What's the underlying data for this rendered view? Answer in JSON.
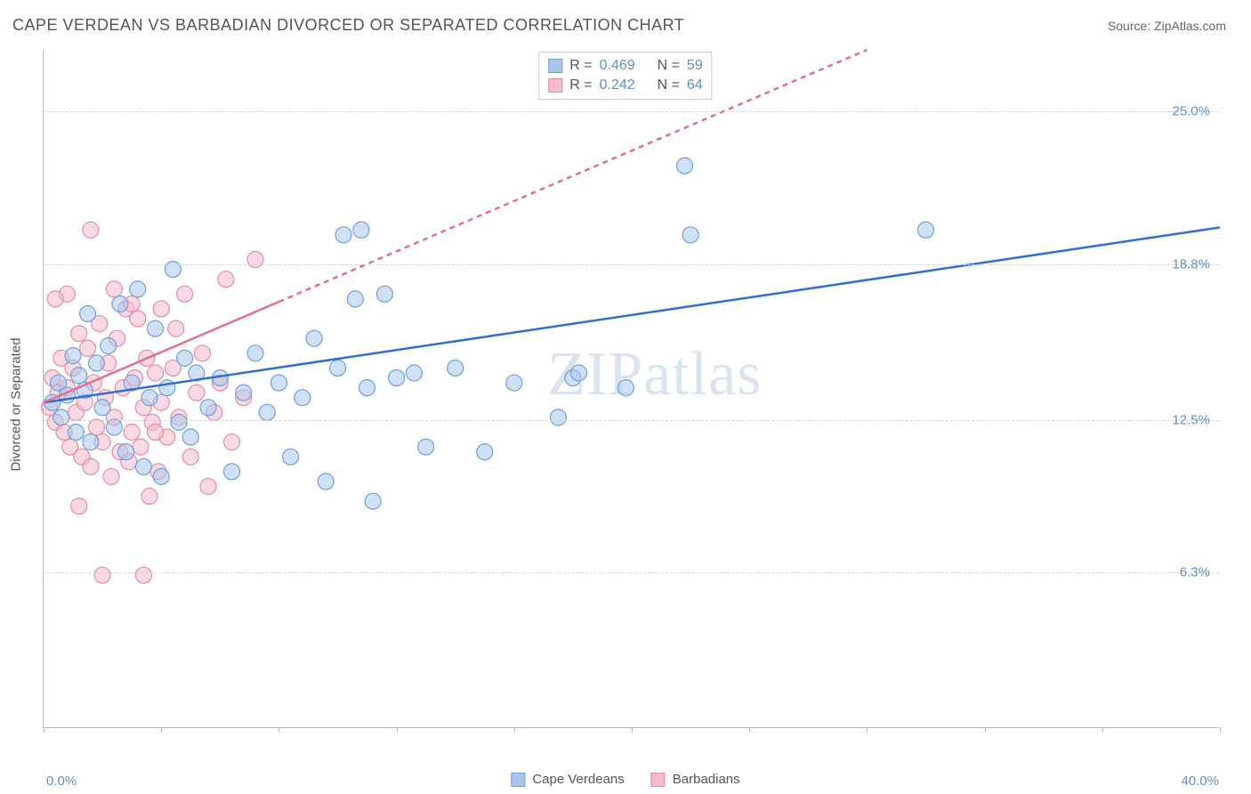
{
  "header": {
    "title": "CAPE VERDEAN VS BARBADIAN DIVORCED OR SEPARATED CORRELATION CHART",
    "source_prefix": "Source: ",
    "source_name": "ZipAtlas.com"
  },
  "axes": {
    "y_title": "Divorced or Separated",
    "x_min_label": "0.0%",
    "x_max_label": "40.0%",
    "xlim": [
      0,
      40
    ],
    "ylim": [
      0,
      27.5
    ],
    "y_gridlines": [
      6.3,
      12.5,
      18.8,
      25.0
    ],
    "y_labels": [
      "6.3%",
      "12.5%",
      "18.8%",
      "25.0%"
    ],
    "x_ticks": [
      0,
      4,
      8,
      12,
      16,
      20,
      24,
      28,
      32,
      36,
      40
    ]
  },
  "colors": {
    "series1_fill": "#a9c7ec",
    "series1_stroke": "#6da0e0",
    "series1_line": "#2f6fd0",
    "series2_fill": "#f4bccb",
    "series2_stroke": "#e88ba6",
    "series2_line": "#e36f8f",
    "grid": "#d5d5d5",
    "axis": "#bbbbbb",
    "text": "#555555",
    "value_text": "#5b8fd6",
    "background": "#ffffff",
    "watermark": "#d9e4f2"
  },
  "legend": {
    "series1": "Cape Verdeans",
    "series2": "Barbadians"
  },
  "stats": {
    "r_label": "R =",
    "n_label": "N =",
    "series1": {
      "r": "0.469",
      "n": "59"
    },
    "series2": {
      "r": "0.242",
      "n": "64"
    }
  },
  "watermark": {
    "text1": "ZIP",
    "text2": "atlas"
  },
  "chart": {
    "type": "scatter",
    "marker_radius": 9,
    "marker_opacity": 0.55,
    "line_width": 2.5,
    "series1_line": {
      "x1": 0,
      "y1": 13.2,
      "x2": 40,
      "y2": 20.3,
      "dashed_from_x": null
    },
    "series2_line": {
      "x1": 0,
      "y1": 13.2,
      "x2": 28,
      "y2": 27.5,
      "solid_to_x": 8
    },
    "series1_points": [
      [
        0.3,
        13.2
      ],
      [
        0.5,
        14.0
      ],
      [
        0.6,
        12.6
      ],
      [
        0.8,
        13.5
      ],
      [
        1.0,
        15.1
      ],
      [
        1.1,
        12.0
      ],
      [
        1.2,
        14.3
      ],
      [
        1.4,
        13.7
      ],
      [
        1.5,
        16.8
      ],
      [
        1.6,
        11.6
      ],
      [
        1.8,
        14.8
      ],
      [
        2.0,
        13.0
      ],
      [
        2.2,
        15.5
      ],
      [
        2.4,
        12.2
      ],
      [
        2.6,
        17.2
      ],
      [
        2.8,
        11.2
      ],
      [
        3.0,
        14.0
      ],
      [
        3.2,
        17.8
      ],
      [
        3.4,
        10.6
      ],
      [
        3.6,
        13.4
      ],
      [
        3.8,
        16.2
      ],
      [
        4.0,
        10.2
      ],
      [
        4.2,
        13.8
      ],
      [
        4.4,
        18.6
      ],
      [
        4.6,
        12.4
      ],
      [
        4.8,
        15.0
      ],
      [
        5.0,
        11.8
      ],
      [
        5.2,
        14.4
      ],
      [
        5.6,
        13.0
      ],
      [
        6.0,
        14.2
      ],
      [
        6.4,
        10.4
      ],
      [
        6.8,
        13.6
      ],
      [
        7.2,
        15.2
      ],
      [
        7.6,
        12.8
      ],
      [
        8.0,
        14.0
      ],
      [
        8.4,
        11.0
      ],
      [
        8.8,
        13.4
      ],
      [
        9.2,
        15.8
      ],
      [
        9.6,
        10.0
      ],
      [
        10.0,
        14.6
      ],
      [
        10.2,
        20.0
      ],
      [
        10.6,
        17.4
      ],
      [
        11.0,
        13.8
      ],
      [
        11.2,
        9.2
      ],
      [
        11.6,
        17.6
      ],
      [
        12.0,
        14.2
      ],
      [
        12.6,
        14.4
      ],
      [
        13.0,
        11.4
      ],
      [
        14.0,
        14.6
      ],
      [
        15.0,
        11.2
      ],
      [
        16.0,
        14.0
      ],
      [
        17.5,
        12.6
      ],
      [
        18.0,
        14.2
      ],
      [
        18.2,
        14.4
      ],
      [
        19.8,
        13.8
      ],
      [
        21.8,
        22.8
      ],
      [
        22.0,
        20.0
      ],
      [
        30.0,
        20.2
      ],
      [
        10.8,
        20.2
      ]
    ],
    "series2_points": [
      [
        0.2,
        13.0
      ],
      [
        0.3,
        14.2
      ],
      [
        0.4,
        12.4
      ],
      [
        0.5,
        13.6
      ],
      [
        0.6,
        15.0
      ],
      [
        0.7,
        12.0
      ],
      [
        0.8,
        13.8
      ],
      [
        0.9,
        11.4
      ],
      [
        1.0,
        14.6
      ],
      [
        1.1,
        12.8
      ],
      [
        1.2,
        16.0
      ],
      [
        1.3,
        11.0
      ],
      [
        1.4,
        13.2
      ],
      [
        1.5,
        15.4
      ],
      [
        1.6,
        10.6
      ],
      [
        1.7,
        14.0
      ],
      [
        1.8,
        12.2
      ],
      [
        1.9,
        16.4
      ],
      [
        2.0,
        11.6
      ],
      [
        2.1,
        13.4
      ],
      [
        2.2,
        14.8
      ],
      [
        2.3,
        10.2
      ],
      [
        2.4,
        12.6
      ],
      [
        2.5,
        15.8
      ],
      [
        2.6,
        11.2
      ],
      [
        2.7,
        13.8
      ],
      [
        2.8,
        17.0
      ],
      [
        2.9,
        10.8
      ],
      [
        3.0,
        12.0
      ],
      [
        3.1,
        14.2
      ],
      [
        3.2,
        16.6
      ],
      [
        3.3,
        11.4
      ],
      [
        3.4,
        13.0
      ],
      [
        3.5,
        15.0
      ],
      [
        3.6,
        9.4
      ],
      [
        3.7,
        12.4
      ],
      [
        3.8,
        14.4
      ],
      [
        3.9,
        10.4
      ],
      [
        4.0,
        13.2
      ],
      [
        4.2,
        11.8
      ],
      [
        4.4,
        14.6
      ],
      [
        4.6,
        12.6
      ],
      [
        4.8,
        17.6
      ],
      [
        5.0,
        11.0
      ],
      [
        5.2,
        13.6
      ],
      [
        5.4,
        15.2
      ],
      [
        5.6,
        9.8
      ],
      [
        5.8,
        12.8
      ],
      [
        6.0,
        14.0
      ],
      [
        6.2,
        18.2
      ],
      [
        6.4,
        11.6
      ],
      [
        6.8,
        13.4
      ],
      [
        7.2,
        19.0
      ],
      [
        1.6,
        20.2
      ],
      [
        0.8,
        17.6
      ],
      [
        0.4,
        17.4
      ],
      [
        2.0,
        6.2
      ],
      [
        3.4,
        6.2
      ],
      [
        1.2,
        9.0
      ],
      [
        4.0,
        17.0
      ],
      [
        2.4,
        17.8
      ],
      [
        3.0,
        17.2
      ],
      [
        3.8,
        12.0
      ],
      [
        4.5,
        16.2
      ]
    ]
  }
}
